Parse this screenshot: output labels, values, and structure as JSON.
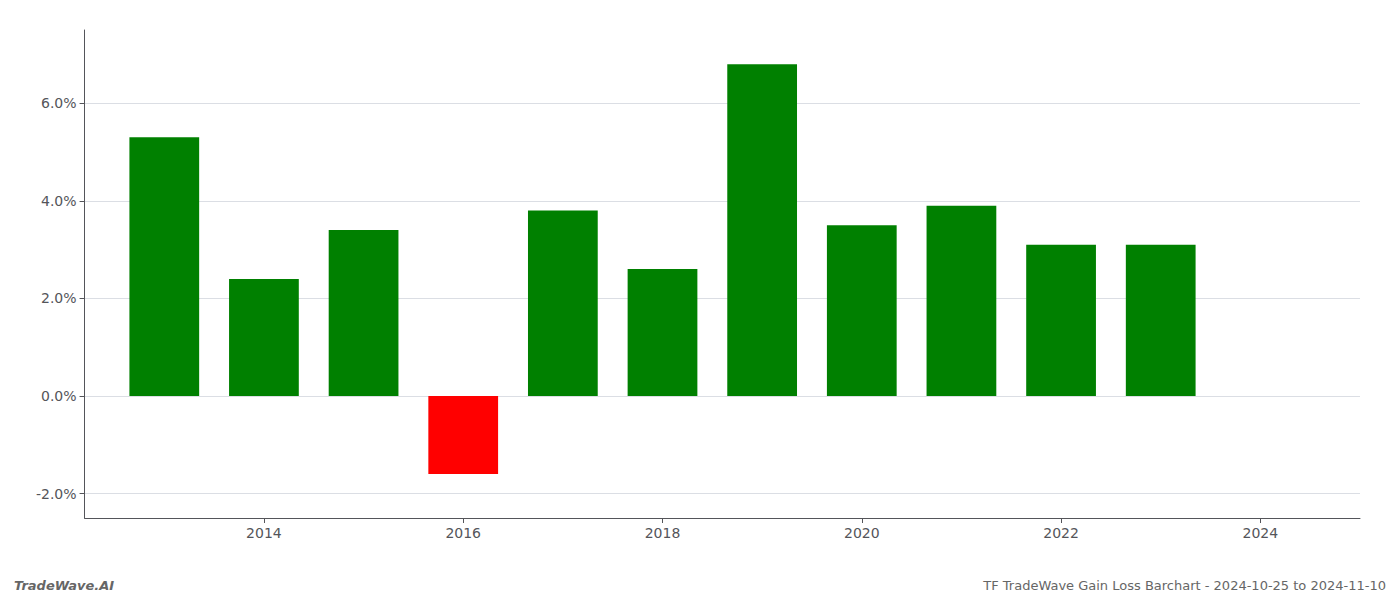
{
  "chart_data": {
    "type": "bar",
    "x": [
      2013,
      2014,
      2015,
      2016,
      2017,
      2018,
      2019,
      2020,
      2021,
      2022,
      2023
    ],
    "values": [
      0.053,
      0.024,
      0.034,
      -0.016,
      0.038,
      0.026,
      0.068,
      0.035,
      0.039,
      0.031,
      0.031
    ],
    "colors": [
      "#008000",
      "#008000",
      "#008000",
      "#ff0000",
      "#008000",
      "#008000",
      "#008000",
      "#008000",
      "#008000",
      "#008000",
      "#008000"
    ],
    "xlim": [
      2012.2,
      2025.0
    ],
    "xticks": [
      2014,
      2016,
      2018,
      2020,
      2022,
      2024
    ],
    "ylim": [
      -0.025,
      0.075
    ],
    "yticks": [
      {
        "value": -0.02,
        "label": "-2.0%"
      },
      {
        "value": 0.0,
        "label": "0.0%"
      },
      {
        "value": 0.02,
        "label": "2.0%"
      },
      {
        "value": 0.04,
        "label": "4.0%"
      },
      {
        "value": 0.06,
        "label": "6.0%"
      }
    ],
    "grid": true,
    "annotations": [
      "TradeWave.AI",
      "TF TradeWave Gain Loss Barchart - 2024-10-25 to 2024-11-10"
    ]
  }
}
